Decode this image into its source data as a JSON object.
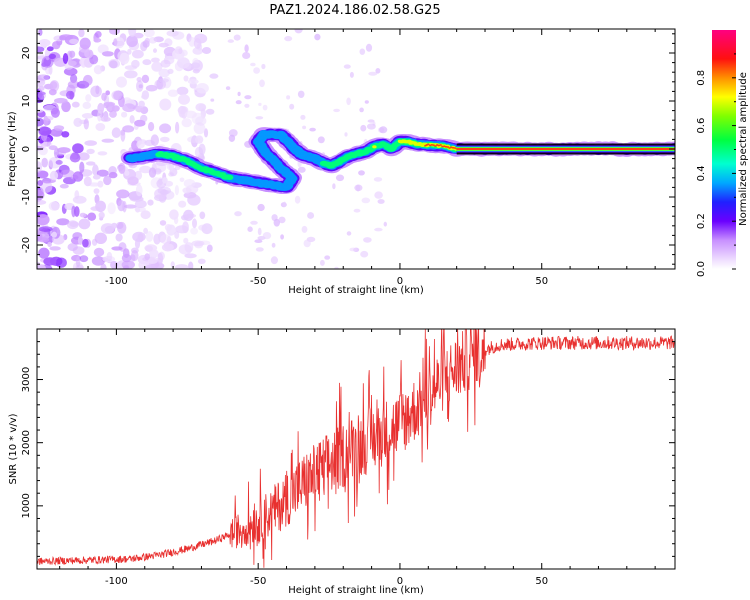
{
  "title": "PAZ1.2024.186.02.58.G25",
  "chart_data": [
    {
      "type": "heatmap",
      "xlabel": "Height of straight line (km)",
      "ylabel": "Frequency (Hz)",
      "xlim": [
        -128,
        97
      ],
      "ylim": [
        -25,
        25
      ],
      "xticks": [
        -100,
        -50,
        0,
        50
      ],
      "yticks": [
        -20,
        -10,
        0,
        10,
        20
      ],
      "colorbar": {
        "label": "Normalized spectral amplitude",
        "range": [
          0,
          1
        ],
        "ticks": [
          "0.0",
          "0.2",
          "0.4",
          "0.6",
          "0.8"
        ],
        "tick_values": [
          0.0,
          0.2,
          0.4,
          0.6,
          0.8
        ],
        "colormap": "gist_ncar-like (white-purple-blue-cyan-green-yellow-red-pink)"
      },
      "ridge": {
        "x": [
          -95,
          -90,
          -85,
          -80,
          -75,
          -70,
          -65,
          -60,
          -55,
          -50,
          -45,
          -40,
          -38,
          -42,
          -47,
          -50,
          -48,
          -42,
          -37,
          -35,
          -33,
          -30,
          -27,
          -24,
          -21,
          -18,
          -15,
          -12,
          -9,
          -6,
          -3,
          0,
          3,
          6,
          10,
          15,
          20,
          30,
          40,
          60,
          80,
          97
        ],
        "y": [
          -2,
          -1.5,
          -1,
          -1.5,
          -2.5,
          -4,
          -5,
          -6,
          -6.5,
          -7,
          -7.5,
          -8,
          -6,
          -4,
          -1,
          1.5,
          3,
          3,
          0,
          -1,
          -1.5,
          -2,
          -3,
          -3.5,
          -2.5,
          -1.5,
          -1,
          -0.5,
          0.5,
          1,
          0,
          1.5,
          1.5,
          1,
          0.8,
          0.7,
          0,
          0,
          0,
          0,
          0,
          0
        ],
        "amplitude": [
          0.4,
          0.45,
          0.5,
          0.52,
          0.55,
          0.55,
          0.52,
          0.5,
          0.45,
          0.4,
          0.45,
          0.45,
          0.4,
          0.35,
          0.35,
          0.4,
          0.4,
          0.35,
          0.35,
          0.4,
          0.45,
          0.45,
          0.5,
          0.5,
          0.55,
          0.55,
          0.6,
          0.6,
          0.7,
          0.65,
          0.6,
          0.7,
          0.7,
          0.75,
          0.9,
          0.9,
          0.95,
          0.95,
          0.95,
          0.95,
          0.95,
          0.95
        ]
      }
    },
    {
      "type": "line",
      "xlabel": "Height of straight line (km)",
      "ylabel": "SNR (10 * v/v)",
      "xlim": [
        -128,
        97
      ],
      "ylim": [
        0,
        3800
      ],
      "xticks": [
        -100,
        -50,
        0,
        50
      ],
      "yticks": [
        1000,
        2000,
        3000
      ],
      "color": "#e8302f",
      "envelope": {
        "x": [
          -128,
          -110,
          -95,
          -85,
          -75,
          -65,
          -55,
          -45,
          -38,
          -30,
          -22,
          -15,
          -8,
          0,
          8,
          15,
          22,
          28,
          35,
          50,
          70,
          97
        ],
        "y": [
          120,
          140,
          160,
          220,
          320,
          450,
          650,
          900,
          1200,
          1500,
          1750,
          1950,
          2100,
          2300,
          2650,
          3000,
          3250,
          3450,
          3550,
          3580,
          3580,
          3580
        ]
      }
    }
  ]
}
